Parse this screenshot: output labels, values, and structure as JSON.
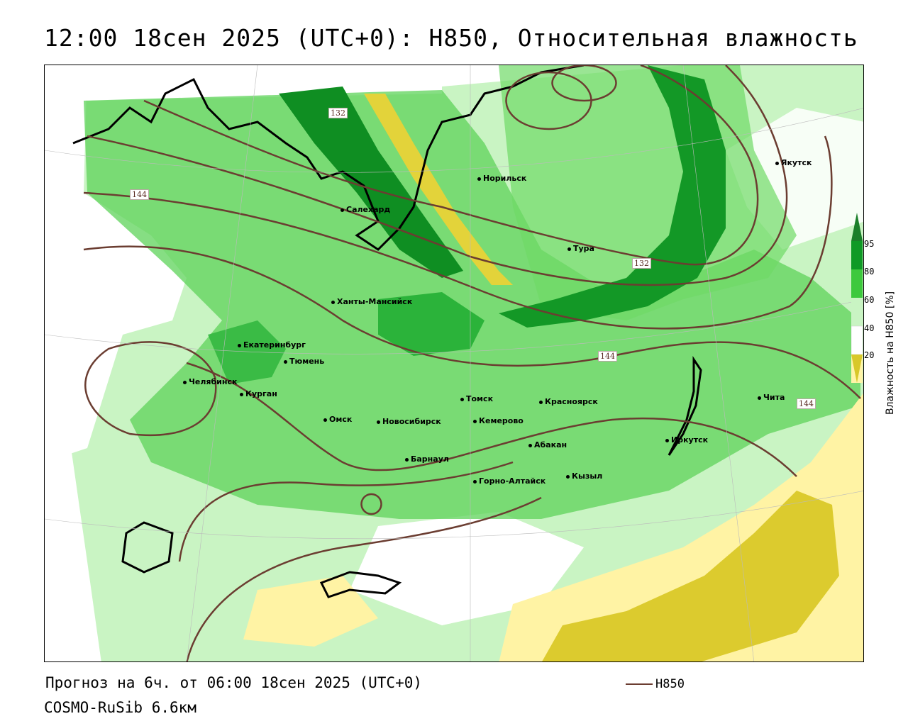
{
  "title": "12:00 18сен 2025 (UTC+0): H850, Относительная влажность",
  "footer": {
    "forecast": "Прогноз на 6ч. от 06:00 18сен 2025 (UTC+0)",
    "model": "COSMO-RuSib 6.6км"
  },
  "legend": {
    "line_label": "H850",
    "colorbar_title": "Влажность на H850 [%]",
    "ticks": [
      "95",
      "80",
      "60",
      "40",
      "20"
    ],
    "colors": {
      "very_wet": "#0b8a1e",
      "wet": "#3cc43c",
      "moist": "#b8f0b4",
      "dry": "#fff4a8",
      "very_dry": "#d8c82a",
      "contour": "#6b3d31"
    }
  },
  "contour_labels": [
    "132",
    "144",
    "132",
    "144",
    "144"
  ],
  "cities": [
    {
      "name": "Якутск"
    },
    {
      "name": "Норильск"
    },
    {
      "name": "Салехард"
    },
    {
      "name": "Тура"
    },
    {
      "name": "Ханты-Мансийск"
    },
    {
      "name": "Екатеринбург"
    },
    {
      "name": "Тюмень"
    },
    {
      "name": "Челябинск"
    },
    {
      "name": "Курган"
    },
    {
      "name": "Омск"
    },
    {
      "name": "Новосибирск"
    },
    {
      "name": "Томск"
    },
    {
      "name": "Кемерово"
    },
    {
      "name": "Красноярск"
    },
    {
      "name": "Чита"
    },
    {
      "name": "Иркутск"
    },
    {
      "name": "Абакан"
    },
    {
      "name": "Барнаул"
    },
    {
      "name": "Кызыл"
    },
    {
      "name": "Горно-Алтайск"
    }
  ]
}
